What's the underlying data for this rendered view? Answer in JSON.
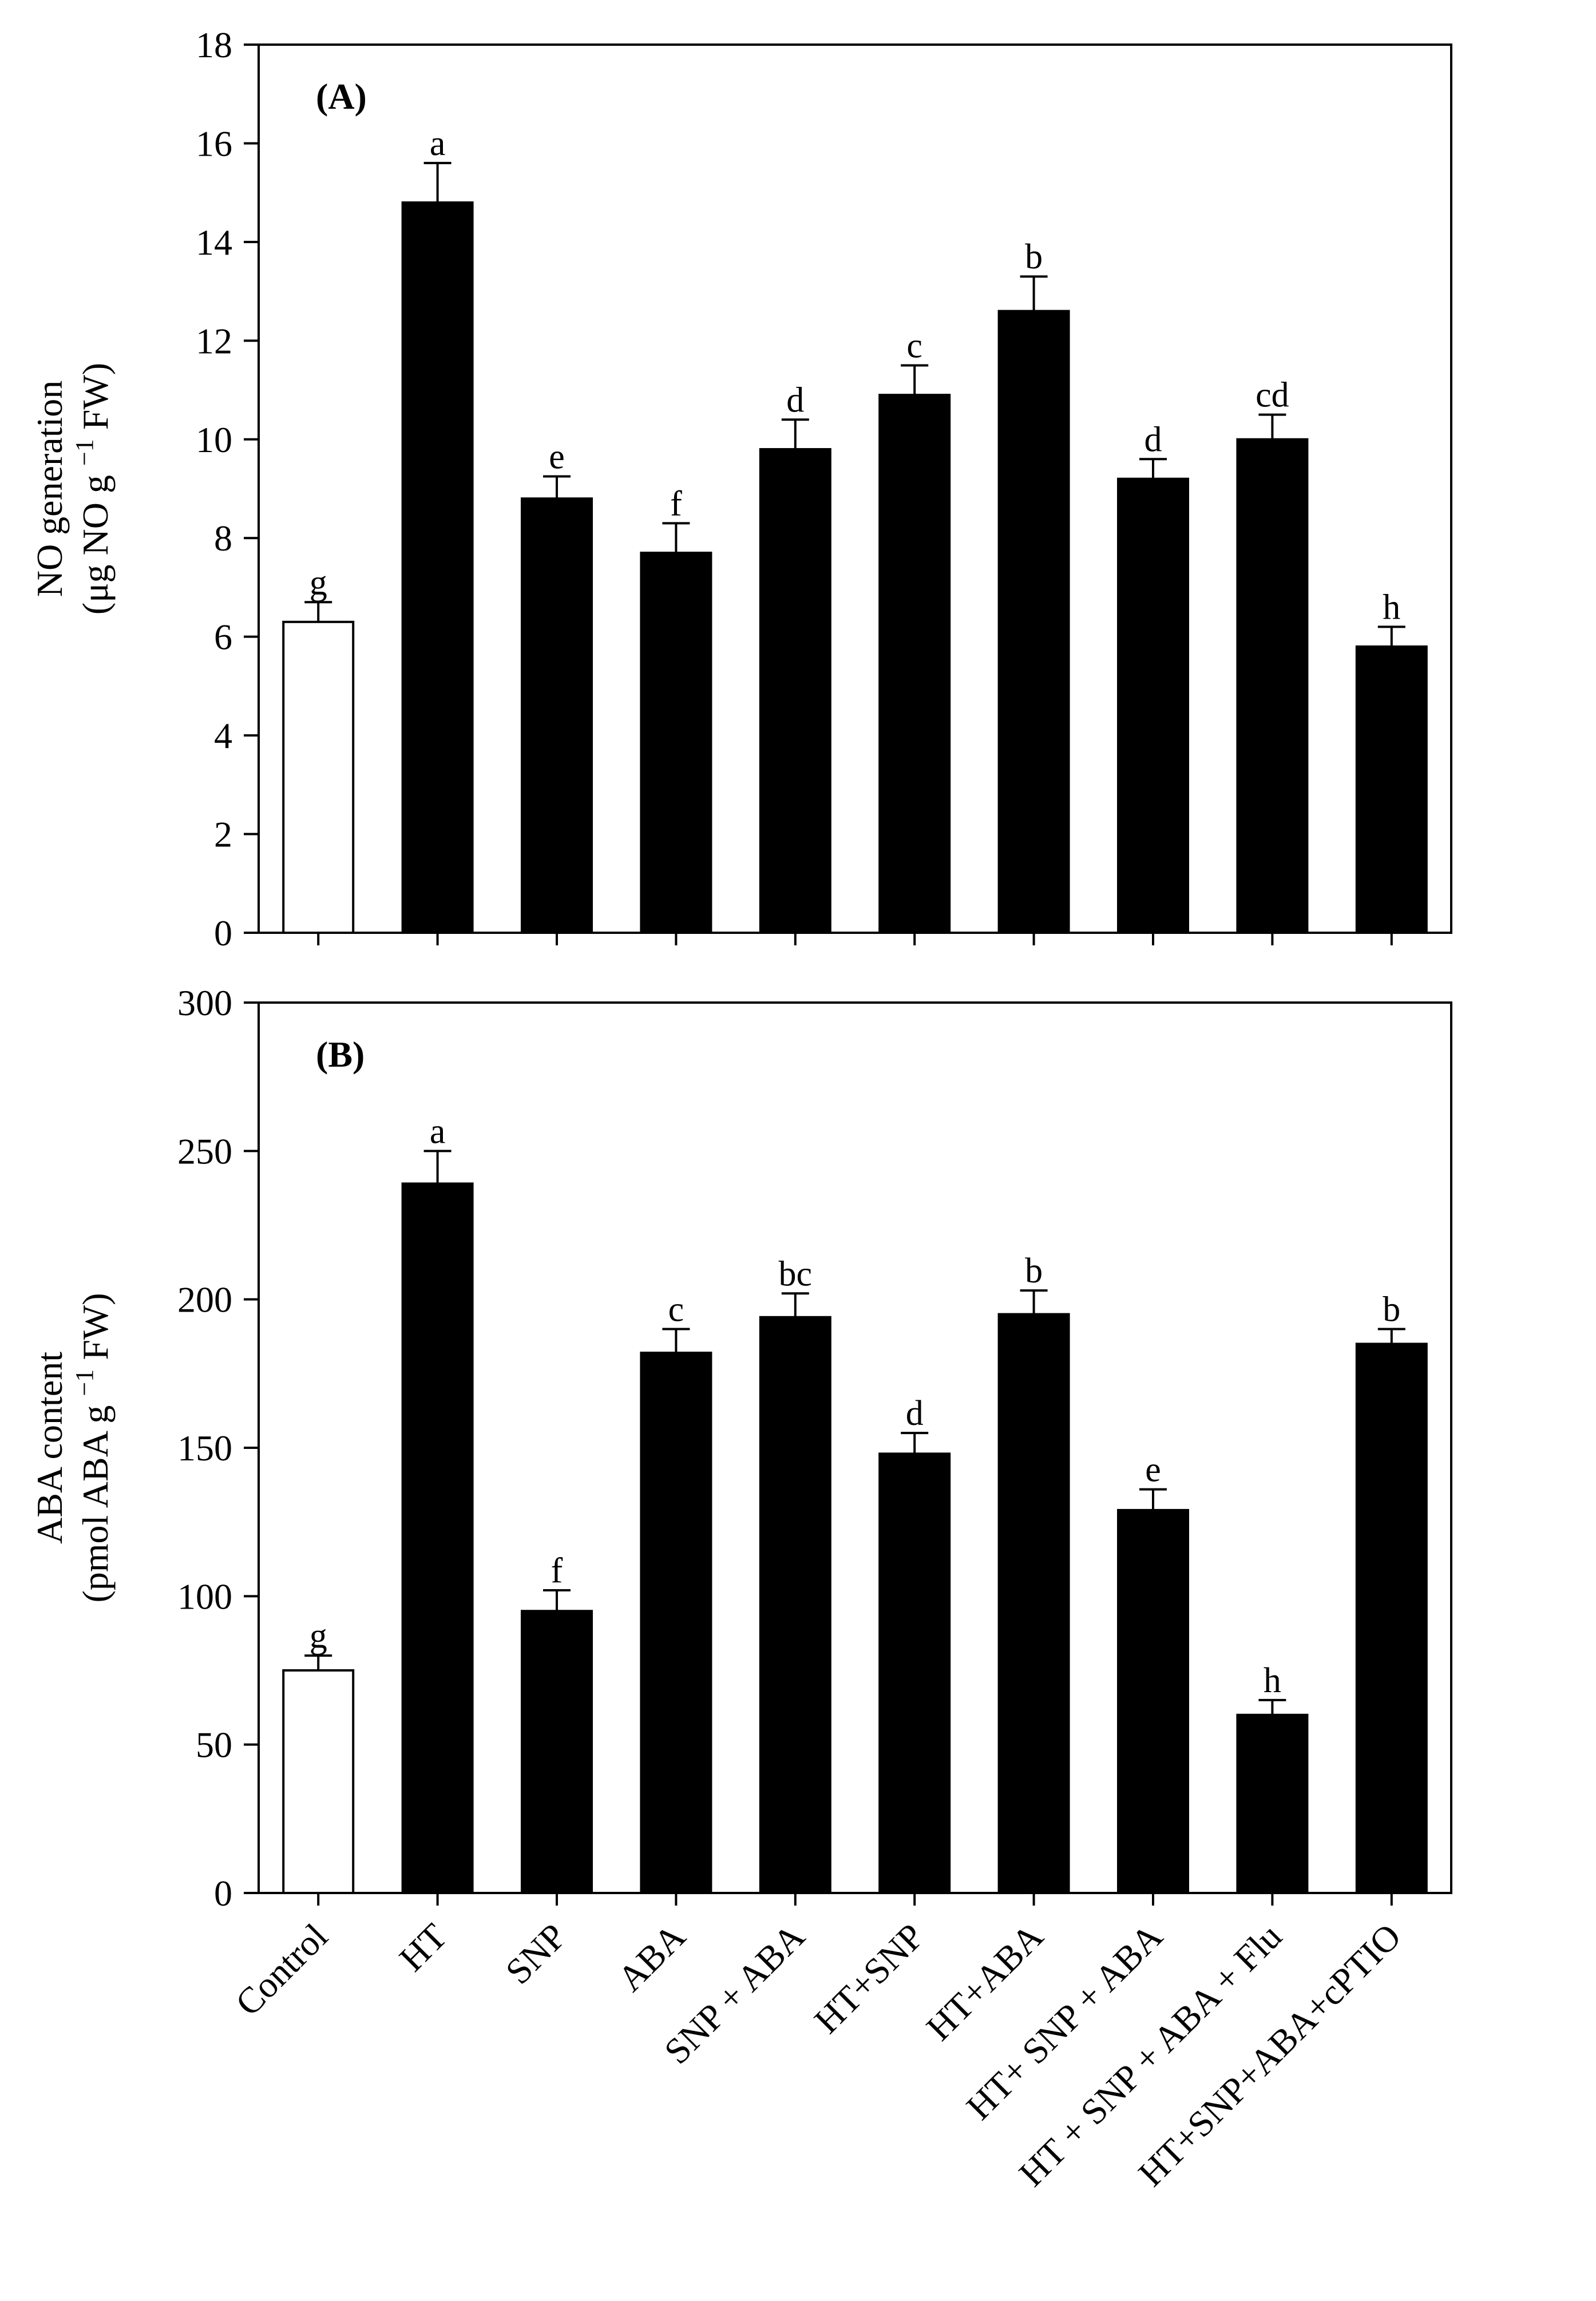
{
  "chart_data": {
    "categories": [
      "Control",
      "HT",
      "SNP",
      "ABA",
      "SNP + ABA",
      "HT+SNP",
      "HT+ABA",
      "HT+ SNP + ABA",
      "HT + SNP + ABA + Flu",
      "HT+SNP+ABA+cPTIO"
    ],
    "bar_colors": [
      "#ffffff",
      "#000000",
      "#000000",
      "#000000",
      "#000000",
      "#000000",
      "#000000",
      "#000000",
      "#000000",
      "#000000"
    ],
    "panels": [
      {
        "id": "A",
        "type": "bar",
        "panel_label": "(A)",
        "ylabel_line1": "NO generation",
        "ylabel_line2_pre": "(μg NO g",
        "ylabel_sup": "−1",
        "ylabel_line2_post": " FW)",
        "ylim": [
          0,
          18
        ],
        "yticks": [
          0,
          2,
          4,
          6,
          8,
          10,
          12,
          14,
          16,
          18
        ],
        "values": [
          6.3,
          14.8,
          8.8,
          7.7,
          9.8,
          10.9,
          12.6,
          9.2,
          10.0,
          5.8
        ],
        "errors": [
          0.4,
          0.8,
          0.45,
          0.6,
          0.6,
          0.6,
          0.7,
          0.4,
          0.5,
          0.4
        ],
        "significance": [
          "g",
          "a",
          "e",
          "f",
          "d",
          "c",
          "b",
          "d",
          "cd",
          "h"
        ]
      },
      {
        "id": "B",
        "type": "bar",
        "panel_label": "(B)",
        "ylabel_line1": "ABA content",
        "ylabel_line2_pre": "(pmol ABA g",
        "ylabel_sup": "−1",
        "ylabel_line2_post": " FW)",
        "ylim": [
          0,
          300
        ],
        "yticks": [
          0,
          50,
          100,
          150,
          200,
          250,
          300
        ],
        "values": [
          75,
          239,
          95,
          182,
          194,
          148,
          195,
          129,
          60,
          185
        ],
        "errors": [
          5,
          11,
          7,
          8,
          8,
          7,
          8,
          7,
          5,
          5
        ],
        "significance": [
          "g",
          "a",
          "f",
          "c",
          "bc",
          "d",
          "b",
          "e",
          "h",
          "b"
        ]
      }
    ]
  }
}
